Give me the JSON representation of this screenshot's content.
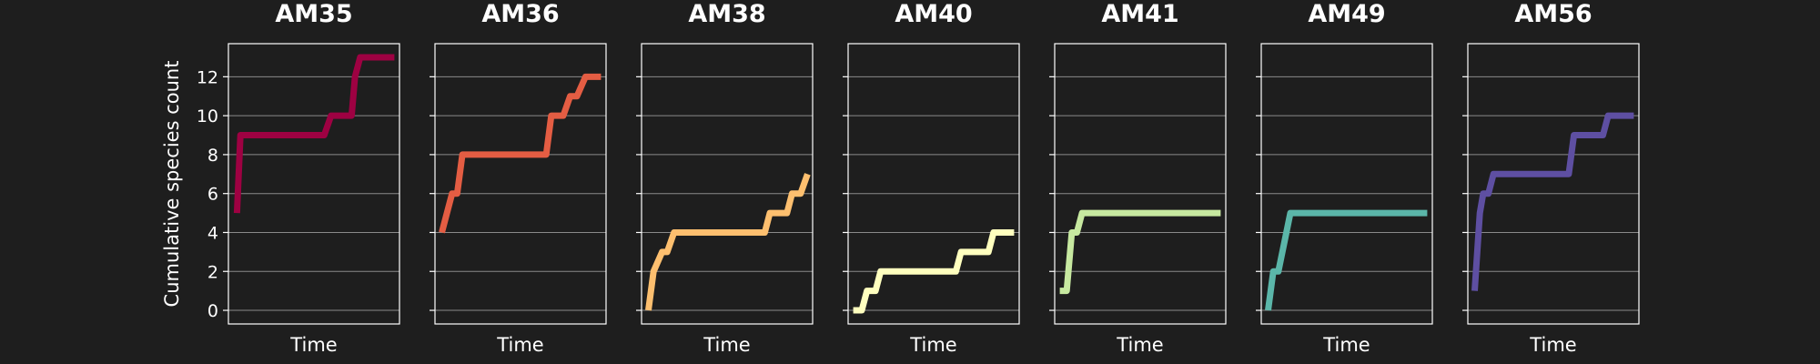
{
  "chart_data": {
    "type": "line",
    "ylabel": "Cumulative species count",
    "xlabel": "Time",
    "yticks": [
      0,
      2,
      4,
      6,
      8,
      10,
      12
    ],
    "ylim": [
      -0.7,
      13.7
    ],
    "xlim": [
      0,
      1
    ],
    "grid": "horizontal",
    "sharey": true,
    "panels": [
      {
        "title": "AM35",
        "color": "#9e0142",
        "x": [
          0.05,
          0.07,
          0.09,
          0.56,
          0.6,
          0.65,
          0.72,
          0.74,
          0.77,
          0.97
        ],
        "y": [
          5,
          9,
          9,
          9,
          10,
          10,
          10,
          12,
          13,
          13
        ]
      },
      {
        "title": "AM36",
        "color": "#e45d43",
        "x": [
          0.04,
          0.1,
          0.13,
          0.16,
          0.65,
          0.68,
          0.75,
          0.79,
          0.83,
          0.88,
          0.97
        ],
        "y": [
          4,
          6,
          6,
          8,
          8,
          10,
          10,
          11,
          11,
          12,
          12
        ]
      },
      {
        "title": "AM38",
        "color": "#fdbf6f",
        "x": [
          0.04,
          0.07,
          0.12,
          0.15,
          0.19,
          0.72,
          0.75,
          0.85,
          0.88,
          0.93,
          0.97
        ],
        "y": [
          0,
          2,
          3,
          3,
          4,
          4,
          5,
          5,
          6,
          6,
          7
        ]
      },
      {
        "title": "AM40",
        "color": "#ffffbf",
        "x": [
          0.03,
          0.08,
          0.11,
          0.16,
          0.19,
          0.63,
          0.66,
          0.82,
          0.85,
          0.97
        ],
        "y": [
          0,
          0,
          1,
          1,
          2,
          2,
          3,
          3,
          4,
          4
        ]
      },
      {
        "title": "AM41",
        "color": "#c7e9a0",
        "x": [
          0.03,
          0.07,
          0.1,
          0.13,
          0.16,
          0.97
        ],
        "y": [
          1,
          1,
          4,
          4,
          5,
          5
        ]
      },
      {
        "title": "AM49",
        "color": "#5bb6a9",
        "x": [
          0.04,
          0.07,
          0.1,
          0.17,
          0.97
        ],
        "y": [
          0,
          2,
          2,
          5,
          5
        ]
      },
      {
        "title": "AM56",
        "color": "#5e4fa2",
        "x": [
          0.04,
          0.07,
          0.09,
          0.12,
          0.15,
          0.59,
          0.62,
          0.79,
          0.82,
          0.97
        ],
        "y": [
          1,
          5,
          6,
          6,
          7,
          7,
          9,
          9,
          10,
          10
        ]
      }
    ]
  }
}
